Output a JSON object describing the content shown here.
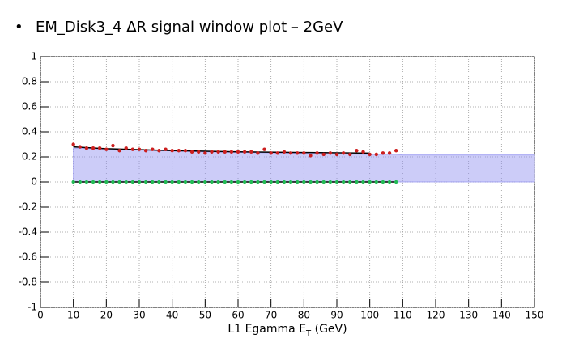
{
  "chart_data": {
    "type": "scatter",
    "bullet": "•",
    "title": "EM_Disk3_4 ΔR signal window plot – 2GeV",
    "x_label": [
      "L1 Egamma E",
      "T",
      " (GeV)"
    ],
    "xlim": [
      0,
      150
    ],
    "xticks": [
      0,
      10,
      20,
      30,
      40,
      50,
      60,
      70,
      80,
      90,
      100,
      110,
      120,
      130,
      140,
      150
    ],
    "ylim": [
      -1,
      1
    ],
    "yticks": [
      -1,
      -0.8,
      -0.6,
      -0.4,
      -0.2,
      0,
      0.2,
      0.4,
      0.6,
      0.8,
      1
    ],
    "grid": true,
    "series": [
      {
        "mark": "band",
        "color": "#8f8ff0",
        "x": [
          10,
          50,
          100,
          108,
          110,
          150
        ],
        "values": [
          0.27,
          0.24,
          0.22,
          0.22,
          0.215,
          0.215
        ]
      },
      {
        "mark": "line",
        "color": "#000000",
        "x": [
          10,
          108
        ],
        "values": [
          0,
          0
        ]
      },
      {
        "mark": "line",
        "color": "#000000",
        "x": [
          10,
          20,
          40,
          60,
          80,
          100
        ],
        "values": [
          0.28,
          0.265,
          0.25,
          0.24,
          0.235,
          0.23
        ]
      },
      {
        "mark": "points",
        "color": "#cc1f1f",
        "x": [
          10,
          12,
          14,
          16,
          18,
          20,
          22,
          24,
          26,
          28,
          30,
          32,
          34,
          36,
          38,
          40,
          42,
          44,
          46,
          48,
          50,
          52,
          54,
          56,
          58,
          60,
          62,
          64,
          66,
          68,
          70,
          72,
          74,
          76,
          78,
          80,
          82,
          84,
          86,
          88,
          90,
          92,
          94,
          96,
          98,
          100,
          102,
          104,
          106,
          108
        ],
        "values": [
          0.3,
          0.28,
          0.27,
          0.27,
          0.27,
          0.26,
          0.29,
          0.25,
          0.27,
          0.26,
          0.26,
          0.25,
          0.26,
          0.25,
          0.26,
          0.25,
          0.25,
          0.25,
          0.24,
          0.24,
          0.23,
          0.24,
          0.24,
          0.24,
          0.24,
          0.24,
          0.24,
          0.24,
          0.23,
          0.26,
          0.23,
          0.23,
          0.24,
          0.23,
          0.23,
          0.23,
          0.21,
          0.23,
          0.22,
          0.23,
          0.22,
          0.23,
          0.22,
          0.25,
          0.24,
          0.22,
          0.22,
          0.23,
          0.23,
          0.25
        ]
      },
      {
        "mark": "points",
        "color": "#22bb55",
        "x": [
          10,
          12,
          14,
          16,
          18,
          20,
          22,
          24,
          26,
          28,
          30,
          32,
          34,
          36,
          38,
          40,
          42,
          44,
          46,
          48,
          50,
          52,
          54,
          56,
          58,
          60,
          62,
          64,
          66,
          68,
          70,
          72,
          74,
          76,
          78,
          80,
          82,
          84,
          86,
          88,
          90,
          92,
          94,
          96,
          98,
          100,
          102,
          104,
          106,
          108
        ],
        "values": [
          0,
          0,
          0,
          0,
          0,
          0,
          0,
          0,
          0,
          0,
          0,
          0,
          0,
          0,
          0,
          0,
          0,
          0,
          0,
          0,
          0,
          0,
          0,
          0,
          0,
          0,
          0,
          0,
          0,
          0,
          0,
          0,
          0,
          0,
          0,
          0,
          0,
          0,
          0,
          0,
          0,
          0,
          0,
          0,
          0,
          0,
          0,
          0,
          0,
          0
        ]
      }
    ]
  }
}
